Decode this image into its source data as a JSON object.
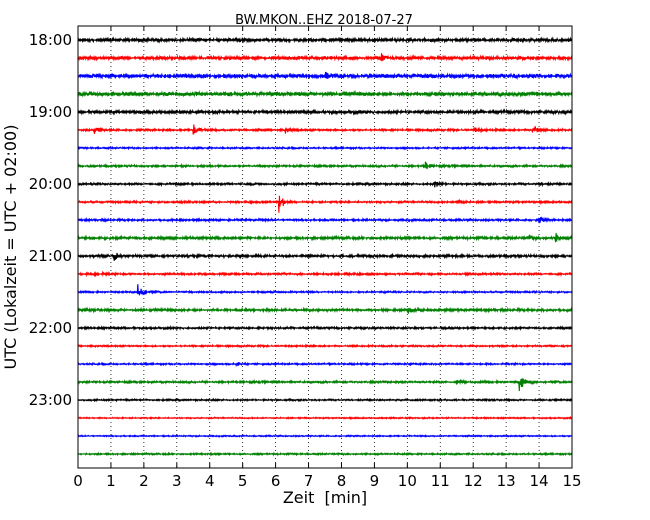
{
  "chart_data": {
    "type": "line",
    "title": "BW.MKON..EHZ 2018-07-27",
    "xlabel": "Zeit  [min]",
    "ylabel": "UTC (Lokalzeit = UTC + 02:00)",
    "xlim": [
      0,
      15
    ],
    "x_ticks": [
      0,
      1,
      2,
      3,
      4,
      5,
      6,
      7,
      8,
      9,
      10,
      11,
      12,
      13,
      14,
      15
    ],
    "x_tick_labels": [
      "0",
      "1",
      "2",
      "3",
      "4",
      "5",
      "6",
      "7",
      "8",
      "9",
      "10",
      "11",
      "12",
      "13",
      "14",
      "15"
    ],
    "y_tick_labels": [
      "18:00",
      "19:00",
      "20:00",
      "21:00",
      "22:00",
      "23:00"
    ],
    "grid": {
      "vertical_dotted": true
    },
    "color_cycle": [
      "#000000",
      "#ff0000",
      "#0000ff",
      "#008000"
    ],
    "trace_interval_min": 15,
    "series": [
      {
        "start": "18:00",
        "events": [],
        "amp": 2.0
      },
      {
        "start": "18:15",
        "events": [
          {
            "t": 9.2,
            "a": 4
          }
        ],
        "amp": 2.0
      },
      {
        "start": "18:30",
        "events": [
          {
            "t": 7.5,
            "a": 3
          }
        ],
        "amp": 2.5
      },
      {
        "start": "18:45",
        "events": [],
        "amp": 2.5
      },
      {
        "start": "19:00",
        "events": [],
        "amp": 1.8
      },
      {
        "start": "19:15",
        "events": [
          {
            "t": 0.5,
            "a": 4
          },
          {
            "t": 3.5,
            "a": 6
          },
          {
            "t": 6.3,
            "a": 3
          },
          {
            "t": 12.0,
            "a": 3
          },
          {
            "t": 13.8,
            "a": 6
          }
        ],
        "amp": 1.2
      },
      {
        "start": "19:30",
        "events": [],
        "amp": 1.0
      },
      {
        "start": "19:45",
        "events": [
          {
            "t": 10.5,
            "a": 6
          }
        ],
        "amp": 1.2
      },
      {
        "start": "20:00",
        "events": [
          {
            "t": 10.8,
            "a": 5
          },
          {
            "t": 14.0,
            "a": 2
          }
        ],
        "amp": 1.2
      },
      {
        "start": "20:15",
        "events": [
          {
            "t": 6.1,
            "a": 10
          },
          {
            "t": 11.5,
            "a": 3
          }
        ],
        "amp": 1.2
      },
      {
        "start": "20:30",
        "events": [
          {
            "t": 14.0,
            "a": 3
          }
        ],
        "amp": 1.2
      },
      {
        "start": "20:45",
        "events": [
          {
            "t": 13.7,
            "a": 3
          },
          {
            "t": 14.5,
            "a": 5
          }
        ],
        "amp": 1.6
      },
      {
        "start": "21:00",
        "events": [
          {
            "t": 1.1,
            "a": 4
          }
        ],
        "amp": 1.5
      },
      {
        "start": "21:15",
        "events": [
          {
            "t": 0.5,
            "a": 4
          }
        ],
        "amp": 1.2
      },
      {
        "start": "21:30",
        "events": [
          {
            "t": 1.8,
            "a": 13
          }
        ],
        "amp": 1.0
      },
      {
        "start": "21:45",
        "events": [
          {
            "t": 5.7,
            "a": 2
          },
          {
            "t": 10.0,
            "a": 4
          }
        ],
        "amp": 1.5
      },
      {
        "start": "22:00",
        "events": [],
        "amp": 1.2
      },
      {
        "start": "22:15",
        "events": [],
        "amp": 1.0
      },
      {
        "start": "22:30",
        "events": [
          {
            "t": 4.8,
            "a": 2
          }
        ],
        "amp": 1.0
      },
      {
        "start": "22:45",
        "events": [
          {
            "t": 11.5,
            "a": 3
          },
          {
            "t": 13.4,
            "a": 10
          }
        ],
        "amp": 1.2
      },
      {
        "start": "23:00",
        "events": [],
        "amp": 1.0
      },
      {
        "start": "23:15",
        "events": [],
        "amp": 0.8
      },
      {
        "start": "23:30",
        "events": [],
        "amp": 0.8
      },
      {
        "start": "23:45",
        "events": [],
        "amp": 1.0
      }
    ]
  }
}
